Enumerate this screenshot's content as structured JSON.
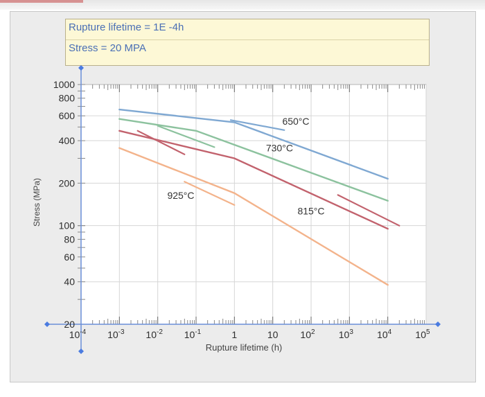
{
  "info_box": {
    "line1": "Rupture lifetime = 1E -4h",
    "line2": "Stress = 20 MPA"
  },
  "chart_data": {
    "type": "line",
    "xlabel": "Rupture lifetime (h)",
    "ylabel": "Stress (MPa)",
    "x_scale": "log",
    "y_scale": "log",
    "xlim": [
      0.0001,
      100000
    ],
    "ylim": [
      20,
      1000
    ],
    "grid": true,
    "x_ticks": [
      {
        "value": 0.0001,
        "base": "10",
        "exp": "-4"
      },
      {
        "value": 0.001,
        "base": "10",
        "exp": "-3"
      },
      {
        "value": 0.01,
        "base": "10",
        "exp": "-2"
      },
      {
        "value": 0.1,
        "base": "10",
        "exp": "-1"
      },
      {
        "value": 1,
        "base": "1",
        "exp": ""
      },
      {
        "value": 10,
        "base": "10",
        "exp": ""
      },
      {
        "value": 100,
        "base": "10",
        "exp": "2"
      },
      {
        "value": 1000,
        "base": "10",
        "exp": "3"
      },
      {
        "value": 10000,
        "base": "10",
        "exp": "4"
      },
      {
        "value": 100000,
        "base": "10",
        "exp": "5"
      }
    ],
    "y_ticks": [
      {
        "value": 20,
        "label": "20"
      },
      {
        "value": 40,
        "label": "40"
      },
      {
        "value": 60,
        "label": "60"
      },
      {
        "value": 80,
        "label": "80"
      },
      {
        "value": 100,
        "label": "100"
      },
      {
        "value": 200,
        "label": "200"
      },
      {
        "value": 400,
        "label": "400"
      },
      {
        "value": 600,
        "label": "600"
      },
      {
        "value": 800,
        "label": "800"
      },
      {
        "value": 1000,
        "label": "1000"
      }
    ],
    "series": [
      {
        "name": "650°C",
        "color": "#7fa8d2",
        "points": [
          [
            0.001,
            665
          ],
          [
            1,
            540
          ],
          [
            10000,
            215
          ]
        ]
      },
      {
        "name": "730°C",
        "color": "#8cc29e",
        "points": [
          [
            0.001,
            570
          ],
          [
            0.1,
            470
          ],
          [
            10000,
            150
          ]
        ]
      },
      {
        "name": "815°C",
        "color": "#c2626d",
        "points": [
          [
            0.001,
            470
          ],
          [
            1,
            300
          ],
          [
            10000,
            95
          ]
        ]
      },
      {
        "name": "925°C",
        "color": "#f3b38b",
        "points": [
          [
            0.001,
            355
          ],
          [
            1,
            170
          ],
          [
            10000,
            38
          ]
        ]
      }
    ],
    "annotations": [
      {
        "text": "650°C",
        "x": 40,
        "y": 520
      },
      {
        "text": "730°C",
        "x": 15,
        "y": 335
      },
      {
        "text": "925°C",
        "x": 0.04,
        "y": 155
      },
      {
        "text": "815°C",
        "x": 100,
        "y": 120
      }
    ],
    "marker_lines": [
      {
        "color": "#7fa8d2",
        "points": [
          [
            0.8,
            560
          ],
          [
            20,
            475
          ]
        ]
      },
      {
        "color": "#8cc29e",
        "points": [
          [
            0.01,
            510
          ],
          [
            0.3,
            360
          ]
        ]
      },
      {
        "color": "#c2626d",
        "points": [
          [
            0.003,
            470
          ],
          [
            0.05,
            320
          ]
        ]
      },
      {
        "color": "#c2626d",
        "points": [
          [
            500,
            165
          ],
          [
            20000,
            100
          ]
        ]
      },
      {
        "color": "#f3b38b",
        "points": [
          [
            0.05,
            205
          ],
          [
            1,
            140
          ]
        ]
      }
    ]
  }
}
